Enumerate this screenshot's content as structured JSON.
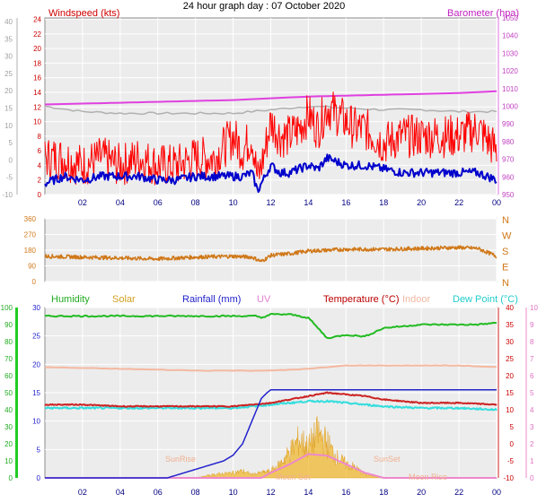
{
  "title": "24 hour graph day : 07 October 2020",
  "x_tick_labels": [
    "02",
    "04",
    "06",
    "08",
    "10",
    "12",
    "14",
    "16",
    "18",
    "20",
    "22",
    "00"
  ],
  "colors": {
    "wind_avg": "#0000cc",
    "wind_gust": "#ff0000",
    "barometer": "#e040e0",
    "barometer_prev": "#b0b0b0",
    "direction": "#d07818",
    "humidity": "#22bb22",
    "solar": "#f0b830",
    "rainfall": "#2222cc",
    "uv": "#ee88cc",
    "temperature": "#cc2222",
    "indoor": "#f4b8a0",
    "dew_point": "#33dddd",
    "frame": "#808080",
    "plot_bg": "#e8e8e8"
  },
  "panel1": {
    "left_label": "Windspeed (kts)",
    "right_label": "Barometer (hpa)",
    "left_outer_ticks": [
      "40",
      "35",
      "30",
      "25",
      "20",
      "15",
      "10",
      "5",
      "0",
      "-5",
      "-10"
    ],
    "left_inner_ticks": [
      "24",
      "22",
      "20",
      "18",
      "16",
      "14",
      "12",
      "10",
      "8",
      "6",
      "4",
      "2",
      "0"
    ],
    "right_ticks": [
      "1050",
      "1040",
      "1030",
      "1020",
      "1010",
      "1000",
      "990",
      "980",
      "970",
      "960",
      "950"
    ]
  },
  "panel2": {
    "left_ticks": [
      "360",
      "270",
      "180",
      "90",
      "0"
    ],
    "right_ticks": [
      "N",
      "W",
      "S",
      "E",
      "N"
    ]
  },
  "panel3": {
    "legend": {
      "humidity": "Humidity",
      "solar": "Solar",
      "rainfall": "Rainfall (mm)",
      "uv": "UV",
      "temperature": "Temperature (°C)",
      "indoor": "Indoor",
      "dew_point": "Dew Point (°C)"
    },
    "humidity_ticks": [
      "100",
      "90",
      "80",
      "70",
      "60",
      "50",
      "40",
      "30",
      "20",
      "10",
      "0"
    ],
    "rain_ticks": [
      "30",
      "25",
      "20",
      "15",
      "10",
      "5",
      "0"
    ],
    "temp_ticks": [
      "40",
      "35",
      "30",
      "25",
      "20",
      "15",
      "10",
      "5",
      "0",
      "-5",
      "-10"
    ],
    "uv_ticks": [
      "10",
      "9",
      "8",
      "7",
      "6",
      "5",
      "4",
      "3",
      "2",
      "1",
      "0"
    ],
    "annotations": [
      "SunRise",
      "Moon Set",
      "SunSet",
      "Moon Rise"
    ]
  },
  "chart_data": [
    {
      "type": "line",
      "title": "24 hour graph day : 07 October 2020",
      "x_unit": "hours",
      "xlim": [
        0,
        24
      ],
      "ylabel": "Windspeed (kts)",
      "ylim": [
        0,
        24
      ],
      "y2label": "Barometer (hpa)",
      "y2lim": [
        950,
        1050
      ],
      "series": [
        {
          "name": "Windspeed",
          "axis": "left",
          "x": [
            0,
            1,
            2,
            3,
            4,
            5,
            6,
            7,
            8,
            9,
            10,
            10.5,
            11,
            11.3,
            11.6,
            12,
            12.5,
            13,
            13.5,
            14,
            14.5,
            15,
            15.5,
            16,
            16.5,
            17,
            18,
            19,
            20,
            21,
            22,
            23,
            24
          ],
          "values": [
            1.5,
            2.5,
            2,
            2.5,
            2.5,
            2.5,
            2,
            2,
            2.5,
            2.5,
            2.5,
            2.5,
            3,
            0.5,
            2,
            4,
            3,
            3,
            3.5,
            4,
            3.5,
            5,
            4.5,
            4,
            4,
            4,
            3.5,
            3,
            3,
            3,
            3,
            3,
            2
          ]
        },
        {
          "name": "Gust",
          "axis": "left",
          "x": [
            0,
            1,
            2,
            3,
            4,
            5,
            6,
            7,
            8,
            9,
            10,
            10.5,
            11,
            11.3,
            11.6,
            12,
            12.5,
            13,
            13.5,
            14,
            14.5,
            15,
            15.5,
            16,
            16.5,
            17,
            18,
            19,
            20,
            21,
            22,
            23,
            24
          ],
          "values": [
            5,
            5,
            4,
            5,
            4,
            5,
            4,
            4,
            5,
            5,
            8,
            6,
            8,
            2,
            5,
            10,
            8,
            8,
            9,
            11,
            9,
            12,
            11,
            10,
            9,
            9,
            7,
            8,
            8,
            8,
            8,
            9,
            6
          ]
        },
        {
          "name": "Barometer",
          "axis": "right",
          "x": [
            0,
            2,
            4,
            6,
            8,
            10,
            12,
            14,
            16,
            18,
            20,
            22,
            24
          ],
          "values": [
            1001,
            1001.5,
            1002,
            1002.5,
            1003,
            1003.5,
            1004.5,
            1005.5,
            1006,
            1006.5,
            1007,
            1007.5,
            1008.5
          ]
        },
        {
          "name": "Barometer (previous)",
          "axis": "right",
          "x": [
            0,
            2,
            4,
            6,
            8,
            10,
            12,
            14,
            16,
            18,
            20,
            22,
            24
          ],
          "values": [
            1000,
            997,
            996,
            996,
            996,
            996,
            998,
            1000,
            999,
            998,
            998,
            997,
            997
          ]
        }
      ]
    },
    {
      "type": "line",
      "x_unit": "hours",
      "xlim": [
        0,
        24
      ],
      "ylim": [
        0,
        360
      ],
      "series": [
        {
          "name": "Wind Direction",
          "x": [
            0,
            2,
            4,
            6,
            8,
            10,
            11,
            11.5,
            12,
            13,
            14,
            15,
            16,
            18,
            20,
            22,
            23,
            24
          ],
          "values": [
            145,
            140,
            135,
            130,
            140,
            145,
            140,
            115,
            150,
            160,
            175,
            180,
            185,
            185,
            190,
            195,
            190,
            145
          ]
        }
      ]
    },
    {
      "type": "line",
      "x_unit": "hours",
      "xlim": [
        0,
        24
      ],
      "series": [
        {
          "name": "Humidity",
          "axis": "humidity",
          "ylim": [
            0,
            100
          ],
          "x": [
            0,
            2,
            4,
            6,
            8,
            10,
            11.2,
            11.5,
            12,
            12.5,
            13,
            14,
            14.5,
            15,
            16,
            17,
            18,
            20,
            22,
            23,
            24
          ],
          "values": [
            95,
            95,
            95,
            95,
            95,
            95,
            95,
            94,
            96,
            96,
            96,
            94,
            88,
            82,
            84,
            83,
            88,
            90,
            90,
            90,
            91
          ]
        },
        {
          "name": "Rainfall",
          "axis": "rain",
          "ylim": [
            0,
            30
          ],
          "x": [
            0,
            6.5,
            7.5,
            8.5,
            9.5,
            10,
            10.5,
            11,
            11.5,
            11.8,
            12,
            14,
            16,
            18,
            20,
            22,
            24
          ],
          "values": [
            0,
            0,
            1,
            2,
            3,
            4,
            6,
            10,
            14,
            15,
            15.5,
            15.5,
            15.5,
            15.5,
            15.5,
            15.5,
            15.5
          ]
        },
        {
          "name": "Temperature",
          "axis": "temp",
          "ylim": [
            -10,
            40
          ],
          "x": [
            0,
            2,
            4,
            6,
            8,
            10,
            11,
            12,
            13,
            14,
            15,
            16,
            17,
            18,
            20,
            22,
            24
          ],
          "values": [
            11.5,
            11.5,
            11,
            11,
            11,
            11,
            11.5,
            12,
            13,
            14,
            15,
            14.5,
            14,
            13,
            12,
            12,
            11.5
          ]
        },
        {
          "name": "Dew Point",
          "axis": "temp",
          "ylim": [
            -10,
            40
          ],
          "x": [
            0,
            2,
            4,
            6,
            8,
            10,
            11,
            12,
            13,
            14,
            15,
            16,
            17,
            18,
            20,
            22,
            24
          ],
          "values": [
            10.5,
            10.5,
            10.5,
            10.5,
            10.5,
            10.5,
            11,
            11.5,
            12,
            12.5,
            12.5,
            12,
            11.5,
            11,
            10.5,
            10.5,
            10
          ]
        },
        {
          "name": "Indoor",
          "axis": "temp",
          "ylim": [
            -10,
            40
          ],
          "x": [
            0,
            4,
            8,
            11,
            12,
            14,
            16,
            18,
            20,
            22,
            24
          ],
          "values": [
            22.5,
            22,
            21.5,
            21.5,
            21.5,
            22,
            23,
            23,
            23,
            23,
            22.5
          ]
        },
        {
          "name": "Solar",
          "axis": "humidity",
          "ylim": [
            0,
            100
          ],
          "x": [
            0,
            8,
            9,
            10,
            10.5,
            11,
            12,
            12.5,
            13,
            13.5,
            14,
            14.5,
            15,
            15.5,
            16,
            16.5,
            17,
            18,
            24
          ],
          "values": [
            0,
            0,
            2,
            3,
            4,
            2,
            4,
            8,
            15,
            22,
            18,
            26,
            20,
            12,
            8,
            6,
            2,
            0,
            0
          ]
        },
        {
          "name": "UV",
          "axis": "uv",
          "ylim": [
            0,
            10
          ],
          "x": [
            0,
            11.5,
            12,
            13,
            14,
            15,
            16,
            17,
            18,
            24
          ],
          "values": [
            0,
            0,
            0.3,
            0.8,
            1.4,
            1.3,
            0.8,
            0.3,
            0,
            0
          ]
        }
      ]
    }
  ]
}
